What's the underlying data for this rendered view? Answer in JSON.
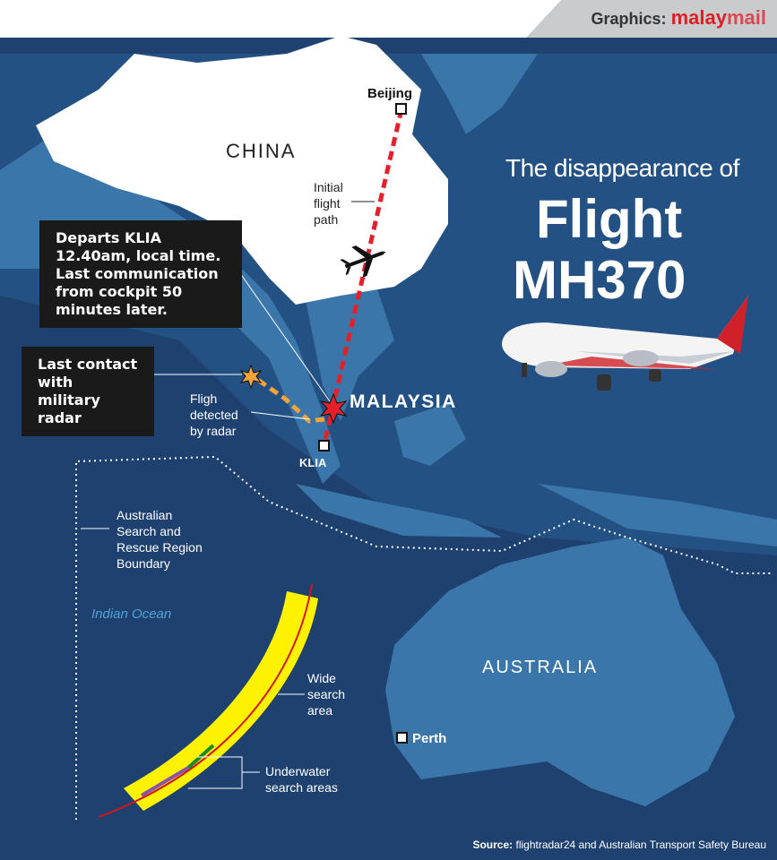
{
  "credit": {
    "prefix": "Graphics:",
    "brand_bold": "malay",
    "brand_light": "mail"
  },
  "title": {
    "line1": "The disappearance of",
    "line2": "Flight",
    "line3": "MH370"
  },
  "labels": {
    "china": "CHINA",
    "malaysia": "MALAYSIA",
    "australia": "AUSTRALIA",
    "indian_ocean": "Indian Ocean",
    "beijing": "Beijing",
    "klia": "KLIA",
    "perth": "Perth",
    "initial_path": [
      "Initial",
      "flight",
      "path"
    ],
    "detected": [
      "Fligh",
      "detected",
      "by radar"
    ],
    "boundary": [
      "Australian",
      "Search and",
      "Rescue Region",
      "Boundary"
    ],
    "wide_area": [
      "Wide",
      "search",
      "area"
    ],
    "underwater": [
      "Underwater",
      "search areas"
    ]
  },
  "callouts": {
    "departs": [
      "Departs KLIA",
      "12.40am, local time.",
      "Last communication",
      "from cockpit 50",
      "minutes later."
    ],
    "last_contact": [
      "Last contact",
      "with military",
      "radar"
    ]
  },
  "source": {
    "label": "Source:",
    "text": "flightradar24 and Australian Transport Safety Bureau"
  },
  "colors": {
    "ocean": "#1e416f",
    "land": "#3b76ab",
    "china": "#ffffff",
    "flight_path": "#e4202a",
    "radar_path": "#f2a33a",
    "search_area": "#fff200",
    "arc": "#d4141c",
    "accent": "#e01e26"
  },
  "icons": [
    "airplane-icon",
    "explosion-star-icon",
    "location-square-icon"
  ]
}
